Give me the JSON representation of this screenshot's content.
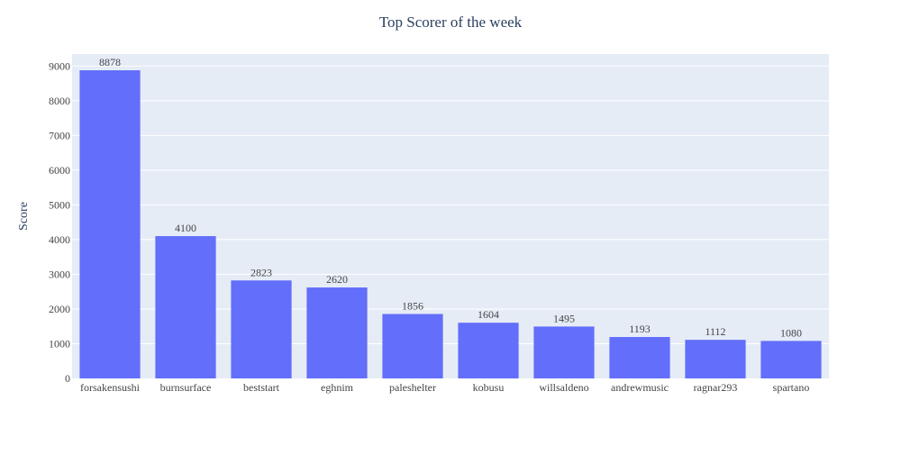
{
  "chart_data": {
    "type": "bar",
    "title": "Top Scorer of the week",
    "xlabel": "",
    "ylabel": "Score",
    "categories": [
      "forsakensushi",
      "burnsurface",
      "beststart",
      "eghnim",
      "paleshelter",
      "kobusu",
      "willsaldeno",
      "andrewmusic",
      "ragnar293",
      "spartano"
    ],
    "values": [
      8878,
      4100,
      2823,
      2620,
      1856,
      1604,
      1495,
      1193,
      1112,
      1080
    ],
    "ylim": [
      0,
      9345.3
    ],
    "yticks": [
      0,
      1000,
      2000,
      3000,
      4000,
      5000,
      6000,
      7000,
      8000,
      9000
    ],
    "grid": true,
    "legend": "none",
    "colors": {
      "bar": "#636efa",
      "plot_bg": "#e5ecf6",
      "grid": "#ffffff",
      "text": "#2a3f5f",
      "tick_text": "#444444"
    }
  }
}
